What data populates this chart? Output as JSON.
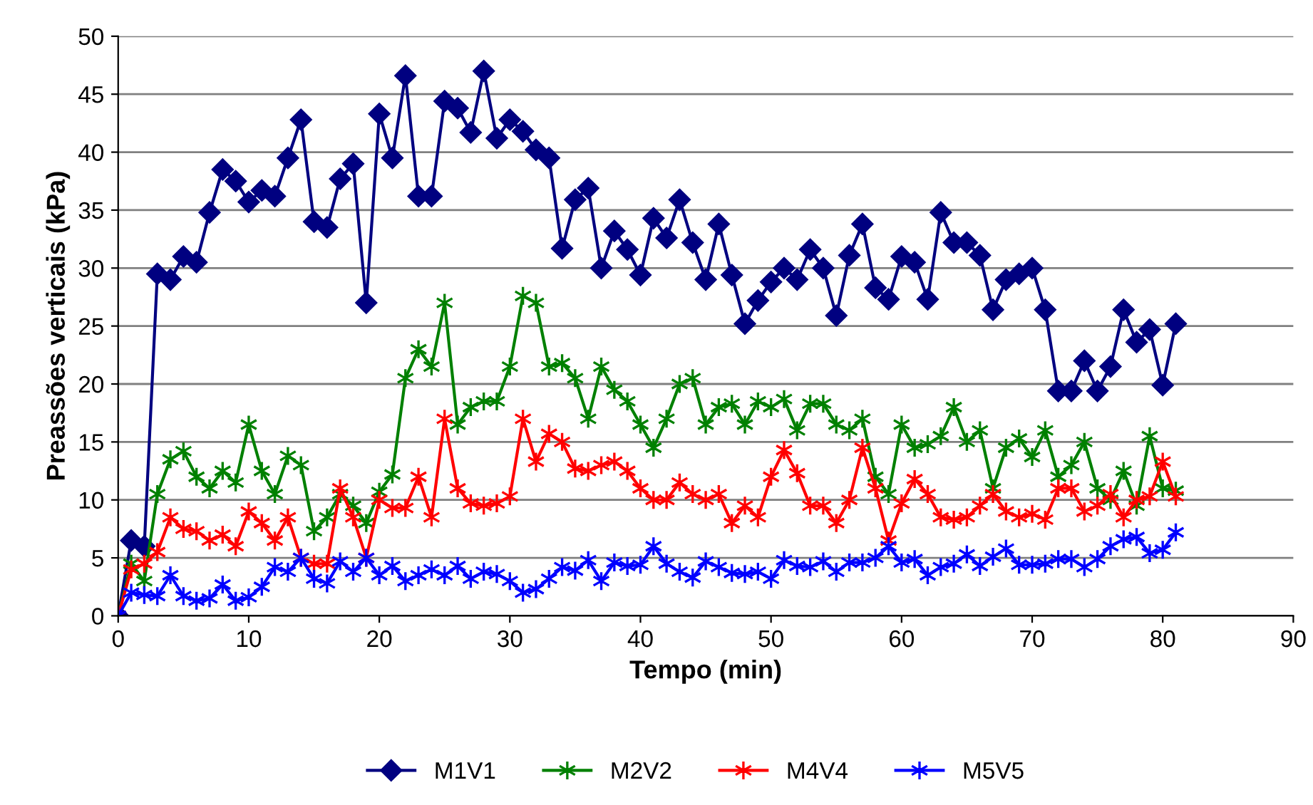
{
  "chart_data": {
    "type": "line",
    "xlabel": "Tempo (min)",
    "ylabel": "Preassões verticais (kPa)",
    "x": [
      0,
      1,
      2,
      3,
      4,
      5,
      6,
      7,
      8,
      9,
      10,
      11,
      12,
      13,
      14,
      15,
      16,
      17,
      18,
      19,
      20,
      21,
      22,
      23,
      24,
      25,
      26,
      27,
      28,
      29,
      30,
      31,
      32,
      33,
      34,
      35,
      36,
      37,
      38,
      39,
      40,
      41,
      42,
      43,
      44,
      45,
      46,
      47,
      48,
      49,
      50,
      51,
      52,
      53,
      54,
      55,
      56,
      57,
      58,
      59,
      60,
      61,
      62,
      63,
      64,
      65,
      66,
      67,
      68,
      69,
      70,
      71,
      72,
      73,
      74,
      75,
      76,
      77,
      78,
      79,
      80,
      81
    ],
    "series": [
      {
        "name": "M1V1",
        "color": "#000080",
        "marker": "diamond",
        "values": [
          0,
          6.5,
          6,
          29.5,
          29,
          31,
          30.5,
          34.8,
          38.5,
          37.5,
          35.7,
          36.7,
          36.2,
          39.5,
          42.8,
          34,
          33.5,
          37.7,
          39,
          27,
          43.3,
          39.5,
          46.6,
          36.2,
          36.2,
          44.4,
          43.8,
          41.7,
          47,
          41.2,
          42.8,
          41.8,
          40.2,
          39.5,
          31.7,
          35.9,
          36.9,
          30,
          33.2,
          31.6,
          29.4,
          34.3,
          32.6,
          35.9,
          32.2,
          29,
          33.8,
          29.4,
          25.2,
          27.2,
          28.8,
          30,
          29,
          31.6,
          30,
          25.9,
          31.1,
          33.8,
          28.3,
          27.3,
          31,
          30.5,
          27.3,
          34.8,
          32.2,
          32.2,
          31.1,
          26.4,
          29,
          29.5,
          30,
          26.4,
          19.4,
          19.4,
          22,
          19.4,
          21.5,
          26.4,
          23.6,
          24.7,
          19.9,
          25.2
        ]
      },
      {
        "name": "M2V2",
        "color": "#008000",
        "marker": "cross",
        "values": [
          0,
          4.5,
          3,
          10.5,
          13.5,
          14.2,
          12,
          11,
          12.5,
          11.5,
          16.5,
          12.5,
          10.5,
          13.8,
          13,
          7.3,
          8.5,
          10.5,
          9.5,
          8,
          10.7,
          12.2,
          20.5,
          23,
          21.5,
          27,
          16.5,
          18,
          18.5,
          18.5,
          21.5,
          27.6,
          27,
          21.5,
          21.8,
          20.5,
          17,
          21.5,
          19.5,
          18.5,
          16.5,
          14.5,
          17,
          20,
          20.5,
          16.5,
          18,
          18.3,
          16.5,
          18.5,
          18,
          18.7,
          16,
          18.3,
          18.3,
          16.5,
          16,
          17,
          12,
          10.5,
          16.5,
          14.5,
          14.8,
          15.5,
          18,
          15,
          16,
          11,
          14.5,
          15.3,
          13.7,
          16,
          12,
          13,
          15,
          11,
          10,
          12.5,
          9.5,
          15.5,
          11,
          10.8
        ]
      },
      {
        "name": "M4V4",
        "color": "#ff0000",
        "marker": "cross",
        "values": [
          0,
          4,
          4.5,
          5.5,
          8.5,
          7.5,
          7.3,
          6.5,
          7,
          6,
          9,
          8,
          6.5,
          8.5,
          5,
          4.5,
          4.5,
          11,
          8.5,
          5,
          10,
          9.3,
          9.3,
          12,
          8.5,
          17,
          11,
          9.7,
          9.5,
          9.7,
          10.3,
          17,
          13.3,
          15.7,
          15,
          12.7,
          12.5,
          13,
          13.3,
          12.5,
          11,
          10,
          10,
          11.5,
          10.5,
          10,
          10.5,
          8,
          9.5,
          8.5,
          12,
          14.3,
          12.3,
          9.5,
          9.5,
          8,
          10,
          14.5,
          11,
          6.5,
          9.7,
          11.8,
          10.5,
          8.5,
          8.3,
          8.5,
          9.5,
          10.5,
          9,
          8.5,
          8.8,
          8.3,
          11,
          11,
          9,
          9.5,
          10.5,
          8.5,
          10,
          10.3,
          13.3,
          10.3
        ]
      },
      {
        "name": "M5V5",
        "color": "#0000ff",
        "marker": "cross",
        "values": [
          0,
          2,
          1.8,
          1.7,
          3.5,
          1.7,
          1.3,
          1.5,
          2.7,
          1.3,
          1.6,
          2.5,
          4.2,
          3.8,
          5,
          3.2,
          2.8,
          4.7,
          3.8,
          5,
          3.5,
          4.3,
          3,
          3.5,
          4,
          3.5,
          4.3,
          3.2,
          3.8,
          3.6,
          3,
          2,
          2.3,
          3.2,
          4.2,
          3.9,
          4.8,
          3,
          4.6,
          4.3,
          4.4,
          6,
          4.5,
          3.8,
          3.3,
          4.7,
          4.2,
          3.7,
          3.6,
          3.8,
          3.2,
          4.8,
          4.3,
          4.2,
          4.7,
          3.8,
          4.6,
          4.6,
          5,
          6,
          4.6,
          4.9,
          3.5,
          4.2,
          4.5,
          5.3,
          4.3,
          5.1,
          5.8,
          4.4,
          4.4,
          4.5,
          4.9,
          4.9,
          4.2,
          4.9,
          6,
          6.6,
          6.8,
          5.4,
          5.7,
          7.2
        ]
      }
    ],
    "xlim": [
      0,
      90
    ],
    "xticks": [
      0,
      10,
      20,
      30,
      40,
      50,
      60,
      70,
      80,
      90
    ],
    "ylim": [
      0,
      50
    ],
    "yticks": [
      0,
      5,
      10,
      15,
      20,
      25,
      30,
      35,
      40,
      45,
      50
    ],
    "grid": "y",
    "legend": "bottom",
    "line_style": "solid"
  }
}
